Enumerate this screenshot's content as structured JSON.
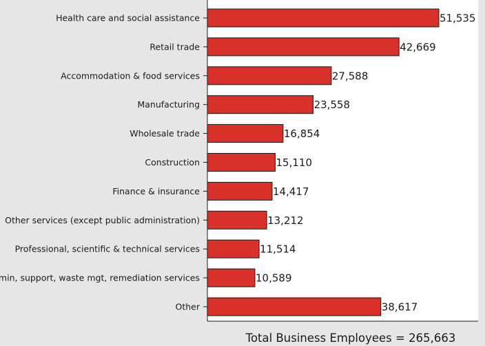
{
  "chart_data": {
    "type": "bar",
    "orientation": "horizontal",
    "categories": [
      "Health care and social assistance",
      "Retail trade",
      "Accommodation & food services",
      "Manufacturing",
      "Wholesale trade",
      "Construction",
      "Finance & insurance",
      "Other services (except public administration)",
      "Professional, scientific & technical services",
      "Admin, support, waste mgt, remediation services",
      "Other"
    ],
    "values": [
      51535,
      42669,
      27588,
      23558,
      16854,
      15110,
      14417,
      13212,
      11514,
      10589,
      38617
    ],
    "value_labels": [
      "51,535",
      "42,669",
      "27,588",
      "23,558",
      "16,854",
      "15,110",
      "14,417",
      "13,212",
      "11,514",
      "10,589",
      "38,617"
    ],
    "xlim": [
      0,
      53000
    ],
    "grid": false,
    "legend": "none",
    "bar_color": "#d9302a",
    "background_color": "#e6e6e6",
    "plot_background_color": "#ffffff",
    "footer": "Total Business Employees = 265,663"
  }
}
